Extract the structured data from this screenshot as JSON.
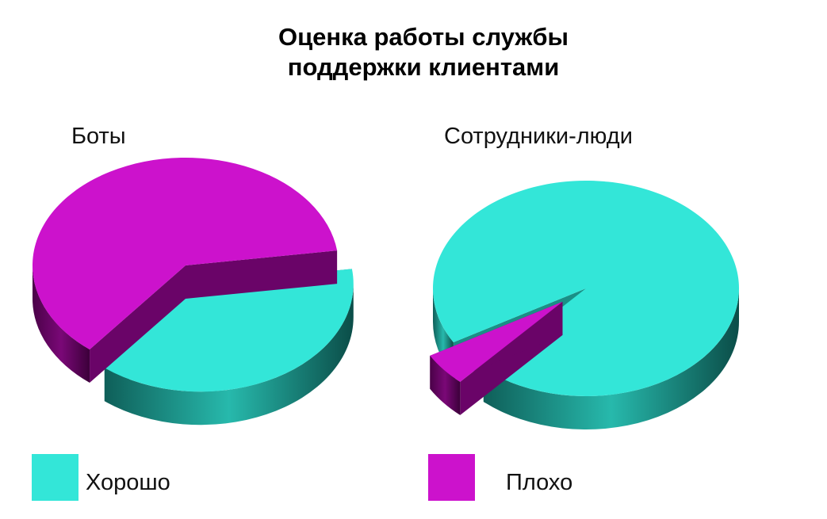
{
  "title_lines": [
    "Оценка работы службы",
    "поддержки клиентами"
  ],
  "chart_data": {
    "type": "pie",
    "title": "Оценка работы службы поддержки клиентами",
    "categories": [
      "Хорошо",
      "Плохо"
    ],
    "colors": {
      "Хорошо": "#33e6d8",
      "Плохо": "#cc12cc"
    },
    "legend_position": "bottom",
    "pies": [
      {
        "name": "Боты",
        "values": [
          38,
          62
        ],
        "exploded": "Хорошо"
      },
      {
        "name": "Сотрудники-люди",
        "values": [
          95,
          5
        ],
        "exploded": "Плохо"
      }
    ]
  }
}
